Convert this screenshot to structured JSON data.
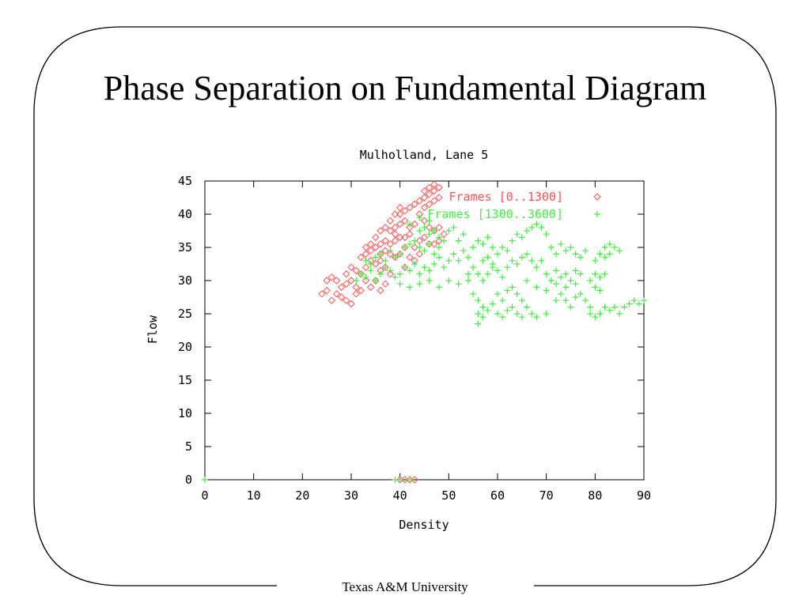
{
  "slide": {
    "title": "Phase Separation on Fundamental Diagram",
    "footer": "Texas A&M University"
  },
  "chart_data": {
    "type": "scatter",
    "title": "Mulholland, Lane 5",
    "xlabel": "Density",
    "ylabel": "Flow",
    "xlim": [
      0,
      90
    ],
    "ylim": [
      0,
      45
    ],
    "xticks": [
      "0",
      "10",
      "20",
      "30",
      "40",
      "50",
      "60",
      "70",
      "80",
      "90"
    ],
    "yticks": [
      "0",
      "5",
      "10",
      "15",
      "20",
      "25",
      "30",
      "35",
      "40",
      "45"
    ],
    "grid": false,
    "legend_position": "top-right",
    "series": [
      {
        "name": "Frames [0..1300]",
        "marker": "diamond",
        "color": "#ff5050",
        "points": [
          [
            24,
            28
          ],
          [
            25,
            28.5
          ],
          [
            26,
            27
          ],
          [
            27,
            28
          ],
          [
            28,
            27.5
          ],
          [
            29,
            27
          ],
          [
            30,
            26.5
          ],
          [
            31,
            28
          ],
          [
            25,
            30
          ],
          [
            26,
            30.5
          ],
          [
            27,
            30
          ],
          [
            28,
            29
          ],
          [
            29,
            29.5
          ],
          [
            30,
            30
          ],
          [
            31,
            29
          ],
          [
            32,
            28.5
          ],
          [
            29,
            31
          ],
          [
            30,
            32
          ],
          [
            31,
            31.5
          ],
          [
            32,
            31
          ],
          [
            33,
            32
          ],
          [
            34,
            33
          ],
          [
            35,
            32.5
          ],
          [
            36,
            33
          ],
          [
            33,
            30
          ],
          [
            34,
            29
          ],
          [
            35,
            30
          ],
          [
            36,
            31.5
          ],
          [
            37,
            32
          ],
          [
            38,
            31
          ],
          [
            37,
            29.5
          ],
          [
            36,
            28.5
          ],
          [
            32,
            33.5
          ],
          [
            33,
            34
          ],
          [
            34,
            34.5
          ],
          [
            35,
            35
          ],
          [
            36,
            35.5
          ],
          [
            37,
            36
          ],
          [
            38,
            35.5
          ],
          [
            39,
            36
          ],
          [
            36,
            34
          ],
          [
            37,
            34.5
          ],
          [
            38,
            34
          ],
          [
            39,
            33.5
          ],
          [
            40,
            34
          ],
          [
            41,
            35
          ],
          [
            40,
            36.5
          ],
          [
            39,
            37
          ],
          [
            38,
            37.5
          ],
          [
            39,
            38
          ],
          [
            40,
            38.5
          ],
          [
            41,
            39
          ],
          [
            42,
            38
          ],
          [
            43,
            38.5
          ],
          [
            42,
            37
          ],
          [
            41,
            36.5
          ],
          [
            40,
            40
          ],
          [
            41,
            40.5
          ],
          [
            42,
            41
          ],
          [
            43,
            41.5
          ],
          [
            44,
            42
          ],
          [
            45,
            42.5
          ],
          [
            46,
            43
          ],
          [
            47,
            43.5
          ],
          [
            44,
            40
          ],
          [
            45,
            39
          ],
          [
            46,
            38
          ],
          [
            47,
            37.5
          ],
          [
            48,
            38
          ],
          [
            49,
            37
          ],
          [
            48,
            36
          ],
          [
            47,
            35.5
          ],
          [
            45,
            41
          ],
          [
            46,
            41.5
          ],
          [
            47,
            42
          ],
          [
            48,
            42.5
          ],
          [
            48,
            44
          ],
          [
            47,
            44.5
          ],
          [
            46,
            44
          ],
          [
            45,
            43.5
          ],
          [
            43,
            35
          ],
          [
            44,
            36
          ],
          [
            45,
            36.5
          ],
          [
            46,
            35.5
          ],
          [
            44,
            34
          ],
          [
            43,
            33
          ],
          [
            42,
            33.5
          ],
          [
            41,
            32
          ],
          [
            40,
            41
          ],
          [
            39,
            40
          ],
          [
            38,
            39
          ],
          [
            37,
            38
          ],
          [
            36,
            37.5
          ],
          [
            35,
            36.5
          ],
          [
            34,
            35.5
          ],
          [
            33,
            35
          ],
          [
            40,
            0
          ],
          [
            41,
            0
          ],
          [
            42,
            0
          ],
          [
            43,
            0
          ]
        ]
      },
      {
        "name": "Frames [1300..3600]",
        "marker": "plus",
        "color": "#40ee40",
        "points": [
          [
            31,
            30
          ],
          [
            32,
            31
          ],
          [
            33,
            30.5
          ],
          [
            34,
            31.5
          ],
          [
            35,
            30
          ],
          [
            36,
            31
          ],
          [
            37,
            32
          ],
          [
            38,
            31.5
          ],
          [
            33,
            33
          ],
          [
            34,
            32.5
          ],
          [
            35,
            33.5
          ],
          [
            36,
            34
          ],
          [
            37,
            33
          ],
          [
            38,
            34.5
          ],
          [
            39,
            33.5
          ],
          [
            40,
            34
          ],
          [
            39,
            30.5
          ],
          [
            40,
            31
          ],
          [
            41,
            32
          ],
          [
            42,
            31.5
          ],
          [
            43,
            32.5
          ],
          [
            44,
            31
          ],
          [
            45,
            32
          ],
          [
            46,
            31.5
          ],
          [
            41,
            35
          ],
          [
            42,
            35.5
          ],
          [
            43,
            36
          ],
          [
            44,
            35
          ],
          [
            45,
            34.5
          ],
          [
            46,
            35.5
          ],
          [
            47,
            34
          ],
          [
            48,
            35
          ],
          [
            40,
            29.5
          ],
          [
            42,
            29
          ],
          [
            44,
            29.5
          ],
          [
            46,
            30
          ],
          [
            48,
            29
          ],
          [
            50,
            30
          ],
          [
            52,
            29.5
          ],
          [
            54,
            30
          ],
          [
            47,
            32.5
          ],
          [
            48,
            33.5
          ],
          [
            49,
            32
          ],
          [
            50,
            33
          ],
          [
            51,
            34
          ],
          [
            52,
            33
          ],
          [
            53,
            34.5
          ],
          [
            54,
            33.5
          ],
          [
            44,
            37.5
          ],
          [
            45,
            38
          ],
          [
            46,
            37
          ],
          [
            47,
            37.5
          ],
          [
            48,
            36.5
          ],
          [
            46,
            39
          ],
          [
            44,
            39.5
          ],
          [
            42,
            38.5
          ],
          [
            55,
            35
          ],
          [
            56,
            36
          ],
          [
            57,
            35.5
          ],
          [
            58,
            36.5
          ],
          [
            59,
            35
          ],
          [
            60,
            34
          ],
          [
            61,
            35
          ],
          [
            62,
            34.5
          ],
          [
            54,
            31
          ],
          [
            55,
            32
          ],
          [
            56,
            31
          ],
          [
            57,
            30
          ],
          [
            58,
            31
          ],
          [
            59,
            32
          ],
          [
            60,
            31.5
          ],
          [
            61,
            30.5
          ],
          [
            55,
            28
          ],
          [
            56,
            27
          ],
          [
            57,
            26
          ],
          [
            56,
            25
          ],
          [
            56,
            23.5
          ],
          [
            57,
            24.5
          ],
          [
            58,
            25.5
          ],
          [
            59,
            26.5
          ],
          [
            60,
            28
          ],
          [
            61,
            27
          ],
          [
            62,
            28.5
          ],
          [
            63,
            29
          ],
          [
            64,
            28
          ],
          [
            65,
            27
          ],
          [
            66,
            26
          ],
          [
            67,
            25
          ],
          [
            60,
            25
          ],
          [
            61,
            24.5
          ],
          [
            62,
            25.5
          ],
          [
            63,
            26
          ],
          [
            64,
            25
          ],
          [
            65,
            24.5
          ],
          [
            68,
            24.5
          ],
          [
            70,
            25
          ],
          [
            62,
            32
          ],
          [
            63,
            33
          ],
          [
            64,
            32.5
          ],
          [
            65,
            33.5
          ],
          [
            66,
            34
          ],
          [
            67,
            33
          ],
          [
            68,
            32
          ],
          [
            69,
            33
          ],
          [
            63,
            36
          ],
          [
            64,
            37
          ],
          [
            65,
            36.5
          ],
          [
            66,
            37.5
          ],
          [
            67,
            38
          ],
          [
            68,
            38.5
          ],
          [
            69,
            38
          ],
          [
            70,
            37
          ],
          [
            70,
            31
          ],
          [
            71,
            30
          ],
          [
            72,
            31.5
          ],
          [
            73,
            30.5
          ],
          [
            74,
            31
          ],
          [
            75,
            30
          ],
          [
            76,
            31.5
          ],
          [
            77,
            31
          ],
          [
            71,
            35
          ],
          [
            72,
            34
          ],
          [
            73,
            35.5
          ],
          [
            74,
            34.5
          ],
          [
            75,
            35
          ],
          [
            76,
            34
          ],
          [
            77,
            33.5
          ],
          [
            78,
            34.5
          ],
          [
            72,
            27
          ],
          [
            73,
            28
          ],
          [
            74,
            27
          ],
          [
            75,
            26
          ],
          [
            76,
            27.5
          ],
          [
            77,
            28
          ],
          [
            78,
            27
          ],
          [
            79,
            26
          ],
          [
            79,
            30
          ],
          [
            80,
            31
          ],
          [
            81,
            30.5
          ],
          [
            82,
            31
          ],
          [
            80,
            29
          ],
          [
            81,
            28.5
          ],
          [
            79,
            25
          ],
          [
            80,
            24.5
          ],
          [
            80,
            33
          ],
          [
            81,
            34
          ],
          [
            82,
            35
          ],
          [
            83,
            35.5
          ],
          [
            84,
            35
          ],
          [
            85,
            34.5
          ],
          [
            83,
            34
          ],
          [
            82,
            33.5
          ],
          [
            81,
            25
          ],
          [
            82,
            26
          ],
          [
            83,
            25.5
          ],
          [
            84,
            26
          ],
          [
            85,
            25
          ],
          [
            86,
            26
          ],
          [
            87,
            26.5
          ],
          [
            88,
            27
          ],
          [
            89,
            26.5
          ],
          [
            90,
            27
          ],
          [
            76,
            29.5
          ],
          [
            74,
            29
          ],
          [
            72,
            29.5
          ],
          [
            70,
            28.5
          ],
          [
            68,
            29
          ],
          [
            66,
            30
          ],
          [
            52,
            36
          ],
          [
            53,
            37
          ],
          [
            51,
            38
          ],
          [
            50,
            37.5
          ],
          [
            49,
            36
          ],
          [
            57,
            33
          ],
          [
            58,
            33.5
          ],
          [
            59,
            32.5
          ],
          [
            0,
            0
          ],
          [
            39,
            0
          ],
          [
            40,
            0
          ],
          [
            42,
            0
          ]
        ]
      }
    ]
  }
}
